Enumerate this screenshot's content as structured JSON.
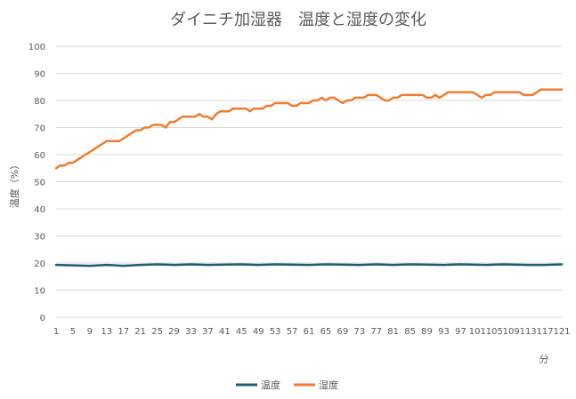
{
  "chart_data": {
    "type": "line",
    "title": "ダイニチ加湿器　温度と湿度の変化",
    "xlabel": "分",
    "ylabel": "温度（%）",
    "ylim": [
      0,
      100
    ],
    "y_ticks": [
      0,
      10,
      20,
      30,
      40,
      50,
      60,
      70,
      80,
      90,
      100
    ],
    "x_range": [
      1,
      121
    ],
    "x_tick_labels": [
      "1",
      "5",
      "9",
      "13",
      "17",
      "21",
      "25",
      "29",
      "33",
      "37",
      "41",
      "45",
      "49",
      "53",
      "57",
      "61",
      "65",
      "69",
      "73",
      "77",
      "81",
      "85",
      "89",
      "93",
      "97",
      "101",
      "105",
      "109",
      "113",
      "117",
      "121"
    ],
    "grid": "horizontal",
    "legend_position": "bottom",
    "series": [
      {
        "name": "温度",
        "color": "#1f5c75",
        "points": [
          [
            1,
            19.3
          ],
          [
            9,
            19.0
          ],
          [
            13,
            19.3
          ],
          [
            17,
            19.0
          ],
          [
            21,
            19.3
          ],
          [
            25,
            19.5
          ],
          [
            29,
            19.3
          ],
          [
            33,
            19.5
          ],
          [
            37,
            19.3
          ],
          [
            45,
            19.5
          ],
          [
            49,
            19.3
          ],
          [
            53,
            19.5
          ],
          [
            61,
            19.3
          ],
          [
            65,
            19.5
          ],
          [
            73,
            19.3
          ],
          [
            77,
            19.5
          ],
          [
            81,
            19.3
          ],
          [
            85,
            19.5
          ],
          [
            93,
            19.3
          ],
          [
            97,
            19.5
          ],
          [
            103,
            19.3
          ],
          [
            107,
            19.5
          ],
          [
            113,
            19.3
          ],
          [
            117,
            19.3
          ],
          [
            121,
            19.5
          ]
        ]
      },
      {
        "name": "湿度",
        "color": "#ed7d31",
        "points": [
          [
            1,
            55
          ],
          [
            2,
            56
          ],
          [
            3,
            56
          ],
          [
            4,
            57
          ],
          [
            5,
            57
          ],
          [
            6,
            58
          ],
          [
            7,
            59
          ],
          [
            8,
            60
          ],
          [
            9,
            61
          ],
          [
            10,
            62
          ],
          [
            11,
            63
          ],
          [
            12,
            64
          ],
          [
            13,
            65
          ],
          [
            14,
            65
          ],
          [
            15,
            65
          ],
          [
            16,
            65
          ],
          [
            17,
            66
          ],
          [
            18,
            67
          ],
          [
            19,
            68
          ],
          [
            20,
            69
          ],
          [
            21,
            69
          ],
          [
            22,
            70
          ],
          [
            23,
            70
          ],
          [
            24,
            71
          ],
          [
            25,
            71
          ],
          [
            26,
            71
          ],
          [
            27,
            70
          ],
          [
            28,
            72
          ],
          [
            29,
            72
          ],
          [
            30,
            73
          ],
          [
            31,
            74
          ],
          [
            32,
            74
          ],
          [
            33,
            74
          ],
          [
            34,
            74
          ],
          [
            35,
            75
          ],
          [
            36,
            74
          ],
          [
            37,
            74
          ],
          [
            38,
            73
          ],
          [
            39,
            75
          ],
          [
            40,
            76
          ],
          [
            41,
            76
          ],
          [
            42,
            76
          ],
          [
            43,
            77
          ],
          [
            44,
            77
          ],
          [
            45,
            77
          ],
          [
            46,
            77
          ],
          [
            47,
            76
          ],
          [
            48,
            77
          ],
          [
            49,
            77
          ],
          [
            50,
            77
          ],
          [
            51,
            78
          ],
          [
            52,
            78
          ],
          [
            53,
            79
          ],
          [
            54,
            79
          ],
          [
            55,
            79
          ],
          [
            56,
            79
          ],
          [
            57,
            78
          ],
          [
            58,
            78
          ],
          [
            59,
            79
          ],
          [
            60,
            79
          ],
          [
            61,
            79
          ],
          [
            62,
            80
          ],
          [
            63,
            80
          ],
          [
            64,
            81
          ],
          [
            65,
            80
          ],
          [
            66,
            81
          ],
          [
            67,
            81
          ],
          [
            68,
            80
          ],
          [
            69,
            79
          ],
          [
            70,
            80
          ],
          [
            71,
            80
          ],
          [
            72,
            81
          ],
          [
            73,
            81
          ],
          [
            74,
            81
          ],
          [
            75,
            82
          ],
          [
            76,
            82
          ],
          [
            77,
            82
          ],
          [
            78,
            81
          ],
          [
            79,
            80
          ],
          [
            80,
            80
          ],
          [
            81,
            81
          ],
          [
            82,
            81
          ],
          [
            83,
            82
          ],
          [
            84,
            82
          ],
          [
            85,
            82
          ],
          [
            86,
            82
          ],
          [
            87,
            82
          ],
          [
            88,
            82
          ],
          [
            89,
            81
          ],
          [
            90,
            81
          ],
          [
            91,
            82
          ],
          [
            92,
            81
          ],
          [
            93,
            82
          ],
          [
            94,
            83
          ],
          [
            95,
            83
          ],
          [
            96,
            83
          ],
          [
            97,
            83
          ],
          [
            98,
            83
          ],
          [
            99,
            83
          ],
          [
            100,
            83
          ],
          [
            101,
            82
          ],
          [
            102,
            81
          ],
          [
            103,
            82
          ],
          [
            104,
            82
          ],
          [
            105,
            83
          ],
          [
            106,
            83
          ],
          [
            107,
            83
          ],
          [
            108,
            83
          ],
          [
            109,
            83
          ],
          [
            110,
            83
          ],
          [
            111,
            83
          ],
          [
            112,
            82
          ],
          [
            113,
            82
          ],
          [
            114,
            82
          ],
          [
            115,
            83
          ],
          [
            116,
            84
          ],
          [
            117,
            84
          ],
          [
            118,
            84
          ],
          [
            119,
            84
          ],
          [
            120,
            84
          ],
          [
            121,
            84
          ],
          [
            122,
            83
          ]
        ]
      }
    ]
  }
}
